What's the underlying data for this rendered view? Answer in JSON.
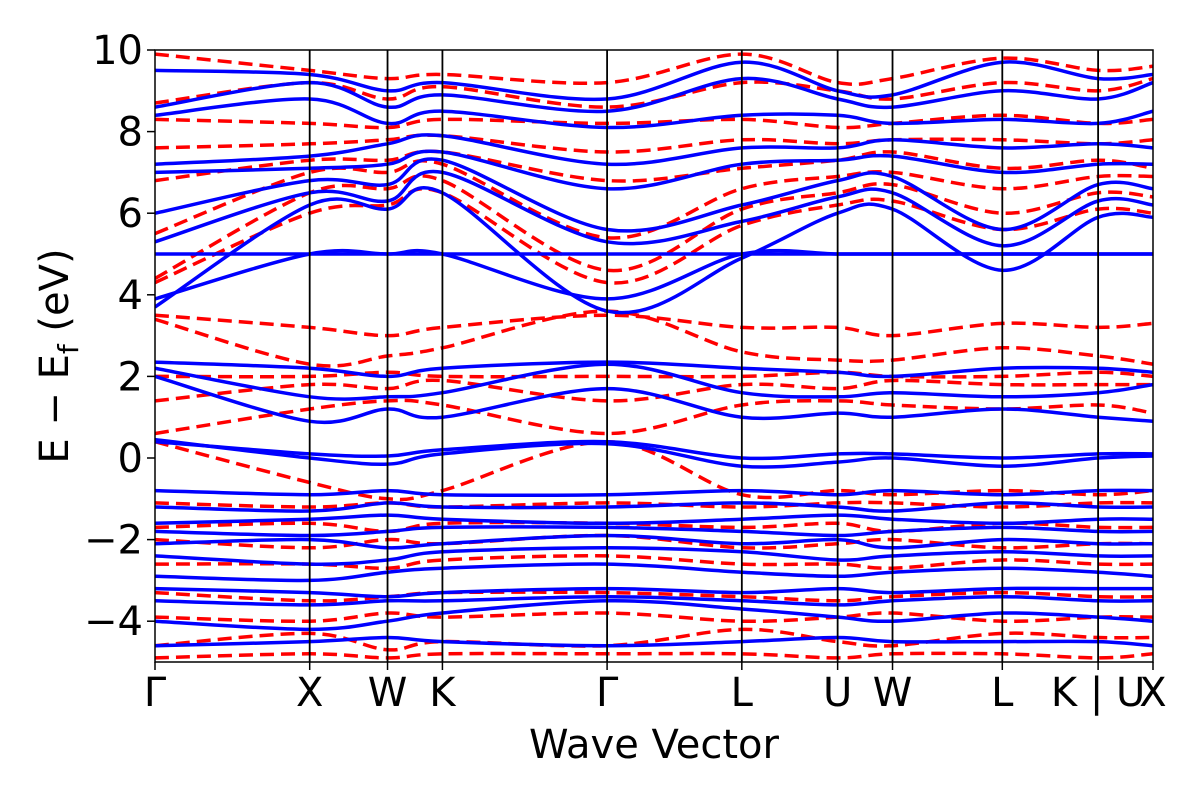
{
  "chart_data": {
    "type": "line",
    "title": "",
    "xlabel": "Wave Vector",
    "ylabel_main": "E − E",
    "ylabel_sub": "f",
    "ylabel_tail": " (eV)",
    "ylim": [
      -5,
      10
    ],
    "xlim": [
      0,
      1
    ],
    "yticks": [
      -4,
      -2,
      0,
      2,
      4,
      6,
      8,
      10
    ],
    "ytick_labels": [
      "−4",
      "−2",
      "0",
      "2",
      "4",
      "6",
      "8",
      "10"
    ],
    "kpoints": [
      {
        "label": "Γ",
        "x": 0.0
      },
      {
        "label": "X",
        "x": 0.155
      },
      {
        "label": "W",
        "x": 0.233
      },
      {
        "label": "K",
        "x": 0.288
      },
      {
        "label": "Γ",
        "x": 0.453
      },
      {
        "label": "L",
        "x": 0.588
      },
      {
        "label": "U",
        "x": 0.684
      },
      {
        "label": "W",
        "x": 0.739
      },
      {
        "label": "L",
        "x": 0.849
      },
      {
        "label": "K | U",
        "x": 0.945
      },
      {
        "label": "X",
        "x": 1.0
      }
    ],
    "vlines_x": [
      0.155,
      0.233,
      0.288,
      0.453,
      0.588,
      0.684,
      0.739,
      0.849,
      0.945
    ],
    "grid": false,
    "colors": {
      "series_solid": "#0000ff",
      "series_dashed": "#ff0000",
      "axes": "#000000"
    },
    "series": [
      {
        "style": "solid",
        "x": [
          0.0,
          0.155,
          0.233,
          0.288,
          0.453,
          0.588,
          0.684,
          0.739,
          0.849,
          0.945,
          1.0
        ],
        "bands": [
          [
            -4.6,
            -4.5,
            -4.4,
            -4.5,
            -4.6,
            -4.5,
            -4.4,
            -4.5,
            -4.5,
            -4.5,
            -4.6
          ],
          [
            -4.0,
            -4.2,
            -4.0,
            -3.8,
            -3.5,
            -3.7,
            -3.9,
            -4.0,
            -3.8,
            -3.9,
            -4.0
          ],
          [
            -3.5,
            -3.6,
            -3.5,
            -3.5,
            -3.4,
            -3.5,
            -3.6,
            -3.5,
            -3.4,
            -3.5,
            -3.5
          ],
          [
            -3.2,
            -3.3,
            -3.4,
            -3.3,
            -3.2,
            -3.3,
            -3.2,
            -3.3,
            -3.2,
            -3.2,
            -3.2
          ],
          [
            -2.9,
            -3.0,
            -2.8,
            -2.7,
            -2.6,
            -2.8,
            -2.9,
            -2.8,
            -2.7,
            -2.8,
            -2.9
          ],
          [
            -2.4,
            -2.6,
            -2.5,
            -2.3,
            -2.2,
            -2.3,
            -2.5,
            -2.4,
            -2.3,
            -2.4,
            -2.4
          ],
          [
            -2.1,
            -2.0,
            -2.2,
            -2.1,
            -1.9,
            -2.1,
            -2.0,
            -2.2,
            -2.0,
            -2.1,
            -2.1
          ],
          [
            -1.8,
            -1.9,
            -1.8,
            -1.7,
            -1.7,
            -1.8,
            -1.9,
            -1.8,
            -1.7,
            -1.8,
            -1.8
          ],
          [
            -1.6,
            -1.5,
            -1.4,
            -1.5,
            -1.6,
            -1.5,
            -1.4,
            -1.5,
            -1.6,
            -1.5,
            -1.5
          ],
          [
            -1.2,
            -1.3,
            -1.1,
            -1.2,
            -1.2,
            -1.1,
            -1.2,
            -1.3,
            -1.1,
            -1.2,
            -1.2
          ],
          [
            -0.8,
            -0.9,
            -0.8,
            -0.9,
            -0.9,
            -0.8,
            -0.9,
            -0.8,
            -0.9,
            -0.8,
            -0.8
          ],
          [
            0.45,
            0.0,
            -0.15,
            0.1,
            0.35,
            -0.2,
            -0.1,
            0.0,
            -0.2,
            0.0,
            0.05
          ],
          [
            0.4,
            0.1,
            0.05,
            0.2,
            0.4,
            0.0,
            0.1,
            0.1,
            0.0,
            0.1,
            0.1
          ],
          [
            2.0,
            0.9,
            1.2,
            1.0,
            1.7,
            1.0,
            1.1,
            1.0,
            1.2,
            1.0,
            0.9
          ],
          [
            2.2,
            1.5,
            1.5,
            1.6,
            2.3,
            1.6,
            1.5,
            1.6,
            1.5,
            1.6,
            1.8
          ],
          [
            2.35,
            2.2,
            2.0,
            2.2,
            2.35,
            2.2,
            2.1,
            2.0,
            2.2,
            2.2,
            2.1
          ],
          [
            3.9,
            5.0,
            5.0,
            5.0,
            3.9,
            5.0,
            5.0,
            5.0,
            5.0,
            5.0,
            5.0
          ],
          [
            3.7,
            6.2,
            6.1,
            6.5,
            3.6,
            4.9,
            6.0,
            6.1,
            4.6,
            5.9,
            5.9
          ],
          [
            5.0,
            5.0,
            5.0,
            5.0,
            5.0,
            5.0,
            5.0,
            5.0,
            5.0,
            5.0,
            5.0
          ],
          [
            5.3,
            6.5,
            6.3,
            7.0,
            5.3,
            5.8,
            6.4,
            6.5,
            5.2,
            6.3,
            6.2
          ],
          [
            6.0,
            6.8,
            6.7,
            7.3,
            5.6,
            6.2,
            6.8,
            6.9,
            5.6,
            6.7,
            6.6
          ],
          [
            7.0,
            7.1,
            7.2,
            7.5,
            6.6,
            7.2,
            7.3,
            7.4,
            7.0,
            7.2,
            7.2
          ],
          [
            7.2,
            7.4,
            7.7,
            7.9,
            7.2,
            7.6,
            7.6,
            7.8,
            7.6,
            7.7,
            7.6
          ],
          [
            8.4,
            8.8,
            8.2,
            8.5,
            8.1,
            8.4,
            8.4,
            8.2,
            8.3,
            8.2,
            8.5
          ],
          [
            8.6,
            9.2,
            8.6,
            8.9,
            8.5,
            9.3,
            8.8,
            8.6,
            9.0,
            8.8,
            9.2
          ],
          [
            9.5,
            9.4,
            9.0,
            9.2,
            8.8,
            9.7,
            9.0,
            8.9,
            9.7,
            9.3,
            9.4
          ]
        ]
      },
      {
        "style": "dashed",
        "x": [
          0.0,
          0.155,
          0.233,
          0.288,
          0.453,
          0.588,
          0.684,
          0.739,
          0.849,
          0.945,
          1.0
        ],
        "bands": [
          [
            -4.9,
            -4.8,
            -4.9,
            -4.8,
            -4.8,
            -4.8,
            -4.9,
            -4.8,
            -4.8,
            -4.9,
            -4.8
          ],
          [
            -4.6,
            -4.3,
            -4.7,
            -4.5,
            -4.6,
            -4.2,
            -4.5,
            -4.6,
            -4.3,
            -4.4,
            -4.4
          ],
          [
            -3.9,
            -4.0,
            -3.8,
            -3.9,
            -3.8,
            -4.0,
            -3.9,
            -3.8,
            -4.0,
            -3.9,
            -3.9
          ],
          [
            -3.3,
            -3.5,
            -3.4,
            -3.3,
            -3.3,
            -3.4,
            -3.5,
            -3.4,
            -3.3,
            -3.4,
            -3.4
          ],
          [
            -2.6,
            -2.6,
            -2.7,
            -2.5,
            -2.4,
            -2.6,
            -2.6,
            -2.7,
            -2.5,
            -2.6,
            -2.6
          ],
          [
            -2.0,
            -2.2,
            -2.0,
            -2.1,
            -1.9,
            -2.2,
            -2.1,
            -2.0,
            -2.2,
            -2.1,
            -2.1
          ],
          [
            -1.7,
            -1.6,
            -1.8,
            -1.6,
            -1.6,
            -1.7,
            -1.6,
            -1.8,
            -1.6,
            -1.7,
            -1.7
          ],
          [
            -1.1,
            -1.2,
            -1.1,
            -1.2,
            -1.1,
            -1.2,
            -1.1,
            -1.1,
            -1.2,
            -1.1,
            -1.1
          ],
          [
            0.4,
            -0.6,
            -1.0,
            -0.8,
            0.4,
            -0.9,
            -0.8,
            -0.9,
            -0.8,
            -0.9,
            -0.8
          ],
          [
            0.6,
            1.2,
            1.4,
            1.3,
            0.6,
            1.3,
            1.4,
            1.3,
            1.2,
            1.3,
            1.1
          ],
          [
            1.4,
            1.8,
            1.7,
            1.9,
            1.4,
            1.8,
            1.7,
            1.9,
            1.8,
            1.8,
            1.8
          ],
          [
            2.0,
            2.0,
            2.1,
            2.0,
            2.0,
            2.0,
            2.1,
            2.0,
            2.0,
            2.1,
            2.0
          ],
          [
            3.4,
            2.3,
            2.5,
            2.7,
            3.6,
            2.6,
            2.4,
            2.4,
            2.7,
            2.5,
            2.3
          ],
          [
            3.5,
            3.2,
            3.0,
            3.2,
            3.5,
            3.2,
            3.2,
            3.0,
            3.3,
            3.2,
            3.3
          ],
          [
            4.3,
            6.0,
            6.2,
            6.5,
            4.3,
            5.7,
            6.2,
            6.3,
            5.6,
            6.1,
            6.0
          ],
          [
            4.4,
            6.5,
            6.6,
            6.8,
            4.6,
            6.1,
            6.5,
            6.7,
            6.0,
            6.5,
            6.4
          ],
          [
            5.5,
            7.0,
            7.0,
            7.2,
            5.4,
            6.6,
            6.9,
            7.0,
            6.6,
            6.9,
            6.9
          ],
          [
            6.8,
            7.3,
            7.3,
            7.5,
            6.8,
            7.1,
            7.3,
            7.5,
            7.1,
            7.3,
            7.1
          ],
          [
            7.6,
            7.7,
            7.8,
            7.9,
            7.5,
            7.8,
            7.7,
            7.8,
            7.8,
            7.7,
            7.8
          ],
          [
            8.3,
            8.2,
            8.1,
            8.3,
            8.2,
            8.3,
            8.1,
            8.2,
            8.4,
            8.2,
            8.3
          ],
          [
            8.7,
            9.2,
            8.8,
            9.1,
            8.6,
            9.2,
            9.0,
            8.8,
            9.2,
            9.0,
            9.3
          ],
          [
            9.9,
            9.5,
            9.3,
            9.4,
            9.2,
            9.9,
            9.2,
            9.3,
            9.8,
            9.5,
            9.6
          ]
        ]
      }
    ]
  }
}
